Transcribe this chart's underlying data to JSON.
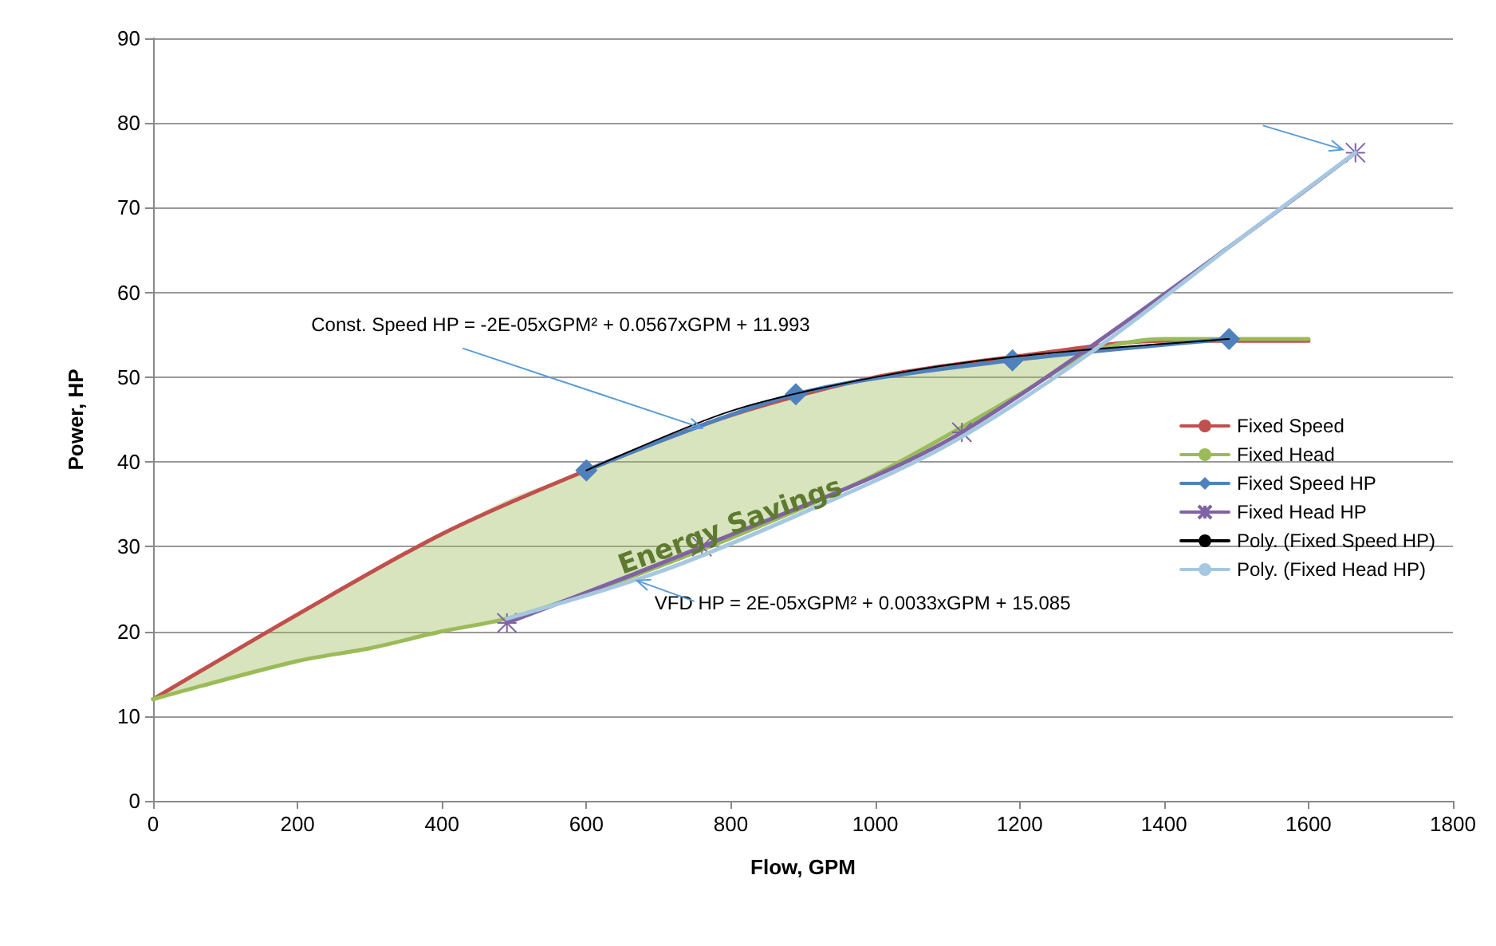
{
  "chart_data": {
    "type": "line",
    "xlabel": "Flow, GPM",
    "ylabel": "Power, HP",
    "xlim": [
      0,
      1800
    ],
    "xticks": [
      0,
      200,
      400,
      600,
      800,
      1000,
      1200,
      1400,
      1600,
      1800
    ],
    "ylim": [
      0,
      90
    ],
    "yticks": [
      0,
      10,
      20,
      30,
      40,
      50,
      60,
      70,
      80,
      90
    ],
    "grid": "y",
    "legend": "right",
    "line_style": "solid",
    "series": [
      {
        "name": "Fixed Speed",
        "color": "#c0504d",
        "marker": "none",
        "x": [
          0,
          200,
          400,
          600,
          800,
          1000,
          1200,
          1400,
          1600
        ],
        "values": [
          12,
          22,
          31.5,
          39,
          45.5,
          50,
          52.5,
          54.3,
          54.3
        ]
      },
      {
        "name": "Fixed Head",
        "color": "#9bbb59",
        "marker": "none",
        "x": [
          0,
          200,
          300,
          400,
          490,
          600,
          800,
          1000,
          1200,
          1300,
          1400,
          1600
        ],
        "values": [
          12,
          16.5,
          18,
          20,
          21.5,
          24.5,
          31,
          38.5,
          48,
          53,
          54.5,
          54.5
        ],
        "lower": [
          12,
          16.5,
          18,
          20,
          21.5,
          24.5,
          31,
          38.5,
          48,
          53,
          54.5,
          54.5
        ],
        "upper": [
          12,
          22,
          27,
          31.5,
          35.5,
          39,
          45.5,
          50,
          52.5,
          53.5,
          54.3,
          54.3
        ]
      },
      {
        "name": "Fixed Speed HP",
        "color": "#4f81bd",
        "marker": "diamond",
        "x": [
          600,
          890,
          1190,
          1490
        ],
        "values": [
          39,
          48,
          52,
          54.5
        ]
      },
      {
        "name": "Fixed Head HP",
        "color": "#8064a2",
        "marker": "cross",
        "x": [
          490,
          760,
          1120,
          1665
        ],
        "values": [
          21,
          30,
          43.5,
          76.5
        ]
      },
      {
        "name": "Poly. (Fixed Speed HP)",
        "color": "#000000",
        "marker": "none",
        "x": [
          600,
          800,
          1000,
          1200,
          1490
        ],
        "values": [
          39,
          46,
          50,
          52.5,
          54.5
        ]
      },
      {
        "name": "Poly. (Fixed Head HP)",
        "color": "#a5c8e0",
        "marker": "none",
        "x": [
          490,
          700,
          900,
          1100,
          1300,
          1500,
          1665
        ],
        "values": [
          21.5,
          27,
          34,
          42,
          53,
          66,
          76.5
        ]
      }
    ],
    "annotations": [
      {
        "text": "Const. Speed HP = -2E-05xGPM² + 0.0567xGPM + 11.993",
        "x": 760,
        "y": 44
      },
      {
        "text": "VFD HP = 2E-05xGPM² + 0.0033xGPM + 15.085",
        "x": 670,
        "y": 26
      },
      "Energy Savings"
    ]
  }
}
